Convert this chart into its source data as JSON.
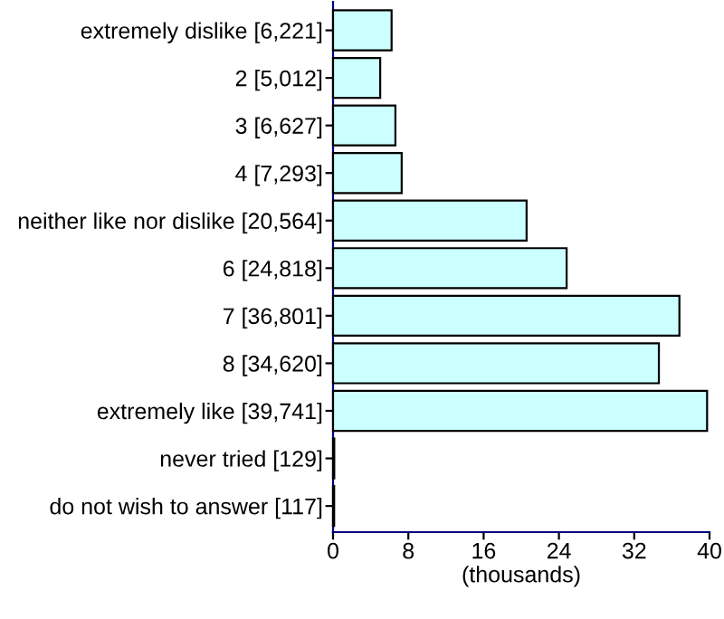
{
  "chart_data": {
    "type": "bar",
    "orientation": "horizontal",
    "categories": [
      "extremely dislike [6,221]",
      "2 [5,012]",
      "3 [6,627]",
      "4 [7,293]",
      "neither like nor dislike [20,564]",
      "6 [24,818]",
      "7 [36,801]",
      "8 [34,620]",
      "extremely like [39,741]",
      "never tried [129]",
      "do not wish to answer [117]"
    ],
    "values": [
      6.221,
      5.012,
      6.627,
      7.293,
      20.564,
      24.818,
      36.801,
      34.62,
      39.741,
      0.129,
      0.117
    ],
    "color": "#ccffff",
    "xlim": [
      0,
      40
    ],
    "xticks": [
      0,
      8,
      16,
      24,
      32,
      40
    ],
    "xlabel": "(thousands)",
    "grid": false
  }
}
